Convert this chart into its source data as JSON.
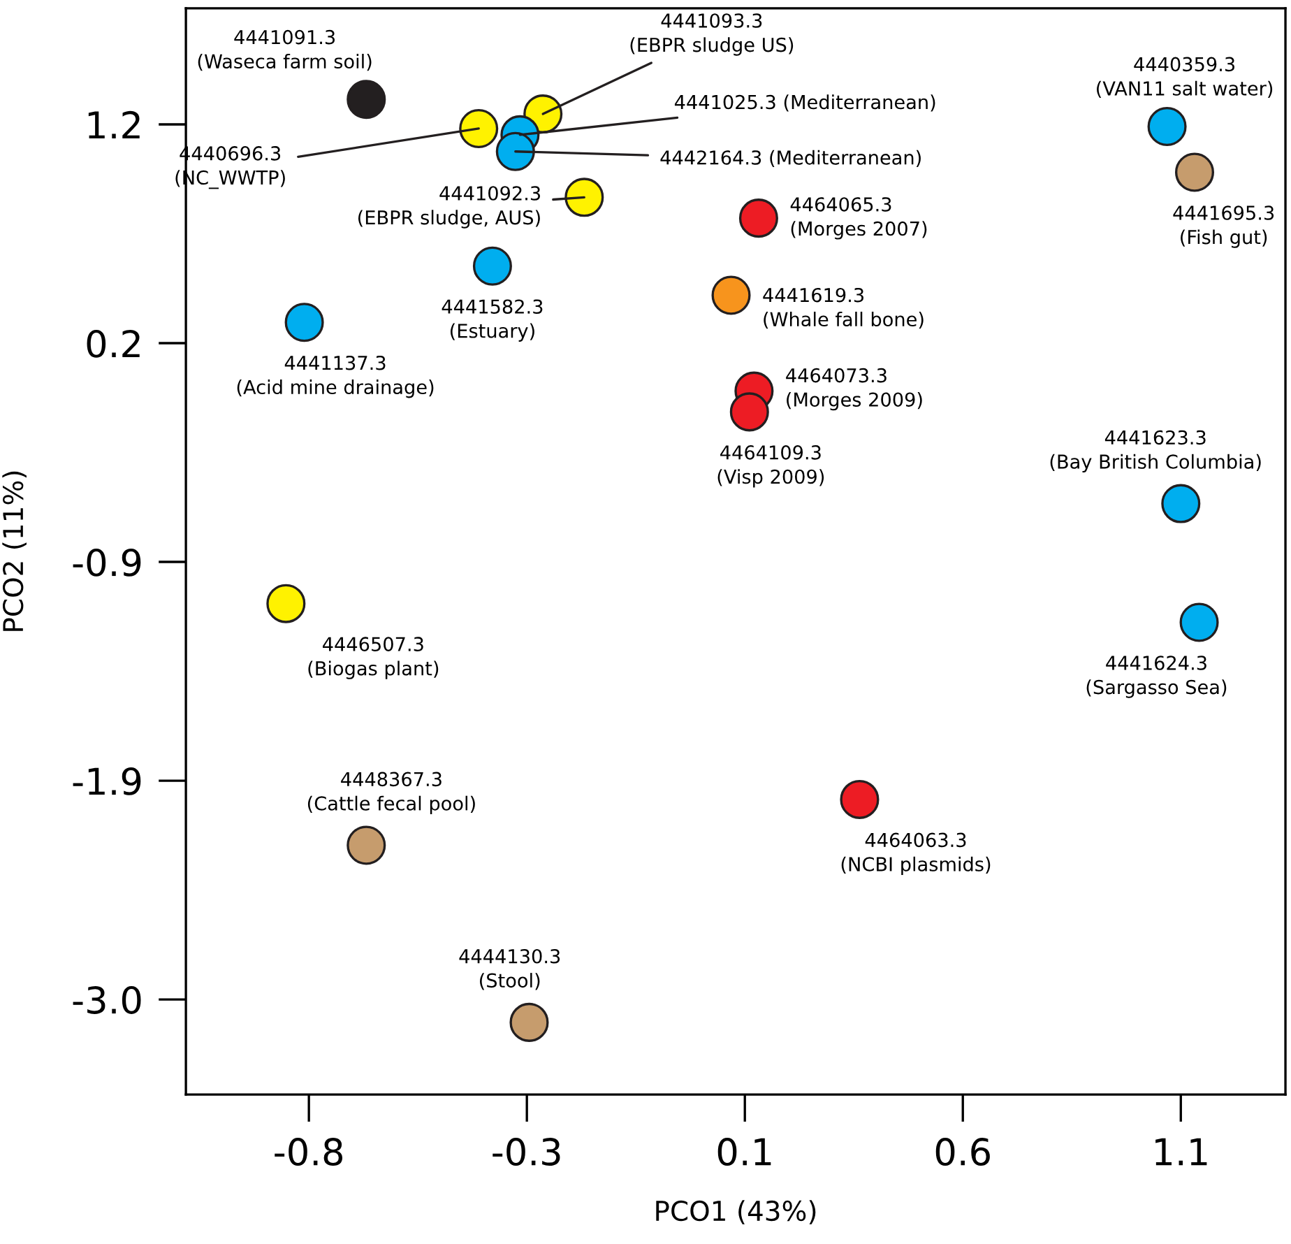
{
  "chart_data": {
    "type": "scatter",
    "xlabel": "PCO1 (43%)",
    "ylabel": "PCO2 (11%)",
    "x": [
      -0.675,
      -0.43,
      -0.29,
      -0.34,
      -0.35,
      -0.2,
      -0.4,
      -0.81,
      0.18,
      0.12,
      0.17,
      0.16,
      1.07,
      1.13,
      1.1,
      1.14,
      -0.85,
      -0.675,
      -0.32,
      0.4
    ],
    "values": [
      1.32,
      1.18,
      1.25,
      1.15,
      1.07,
      0.85,
      0.52,
      0.25,
      0.75,
      0.38,
      -0.08,
      -0.18,
      1.19,
      0.97,
      -0.62,
      -1.19,
      -1.1,
      -2.26,
      -3.11,
      -2.04
    ],
    "colors": [
      "#231f20",
      "#fff200",
      "#fff200",
      "#00aeef",
      "#00aeef",
      "#fff200",
      "#00aeef",
      "#00aeef",
      "#ed1c24",
      "#f7941d",
      "#ed1c24",
      "#ed1c24",
      "#00aeef",
      "#c69c6d",
      "#00aeef",
      "#00aeef",
      "#fff200",
      "#c69c6d",
      "#c69c6d",
      "#ed1c24"
    ],
    "marker": "circle",
    "xlim": [
      -1.068,
      1.328
    ],
    "ylim": [
      -3.456,
      1.757
    ],
    "xticks": [
      {
        "value": -0.8,
        "label": "-0.8"
      },
      {
        "value": -0.325,
        "label": "-0.3"
      },
      {
        "value": 0.15,
        "label": "0.1"
      },
      {
        "value": 0.625,
        "label": "0.6"
      },
      {
        "value": 1.1,
        "label": "1.1"
      }
    ],
    "yticks": [
      {
        "value": 1.2,
        "label": "1.2"
      },
      {
        "value": 0.15,
        "label": "0.2"
      },
      {
        "value": -0.9,
        "label": "-0.9"
      },
      {
        "value": -1.95,
        "label": "-1.9"
      },
      {
        "value": -3.0,
        "label": "-3.0"
      }
    ],
    "grid": false,
    "legend": false,
    "annotations": [
      {
        "text": "4441091.3\n(Waseca farm soil)",
        "x": -0.675,
        "y": 1.32
      },
      {
        "text": "4440696.3\n(NC_WWTP)",
        "x": -0.43,
        "y": 1.18
      },
      {
        "text": "4441093.3\n(EBPR sludge US)",
        "x": -0.29,
        "y": 1.25
      },
      {
        "text": "4441025.3 (Mediterranean)",
        "x": -0.34,
        "y": 1.15
      },
      {
        "text": "4442164.3 (Mediterranean)",
        "x": -0.35,
        "y": 1.07
      },
      {
        "text": "4441092.3\n(EBPR sludge, AUS)",
        "x": -0.2,
        "y": 0.85
      },
      {
        "text": "4441582.3\n(Estuary)",
        "x": -0.4,
        "y": 0.52
      },
      {
        "text": "4441137.3\n(Acid mine drainage)",
        "x": -0.81,
        "y": 0.25
      },
      {
        "text": "4464065.3\n(Morges 2007)",
        "x": 0.18,
        "y": 0.75
      },
      {
        "text": "4441619.3\n(Whale fall bone)",
        "x": 0.12,
        "y": 0.38
      },
      {
        "text": "4464073.3\n(Morges 2009)",
        "x": 0.17,
        "y": -0.08
      },
      {
        "text": "4464109.3\n(Visp 2009)",
        "x": 0.16,
        "y": -0.18
      },
      {
        "text": "4440359.3\n(VAN11 salt water)",
        "x": 1.07,
        "y": 1.19
      },
      {
        "text": "4441695.3\n(Fish gut)",
        "x": 1.13,
        "y": 0.97
      },
      {
        "text": "4441623.3\n(Bay British Columbia)",
        "x": 1.1,
        "y": -0.62
      },
      {
        "text": "4441624.3\n(Sargasso Sea)",
        "x": 1.14,
        "y": -1.19
      },
      {
        "text": "4446507.3\n(Biogas plant)",
        "x": -0.85,
        "y": -1.1
      },
      {
        "text": "4448367.3\n(Cattle fecal pool)",
        "x": -0.675,
        "y": -2.26
      },
      {
        "text": "4444130.3\n(Stool)",
        "x": -0.32,
        "y": -3.11
      },
      {
        "text": "4464063.3\n(NCBI plasmids)",
        "x": 0.4,
        "y": -2.04
      }
    ]
  }
}
